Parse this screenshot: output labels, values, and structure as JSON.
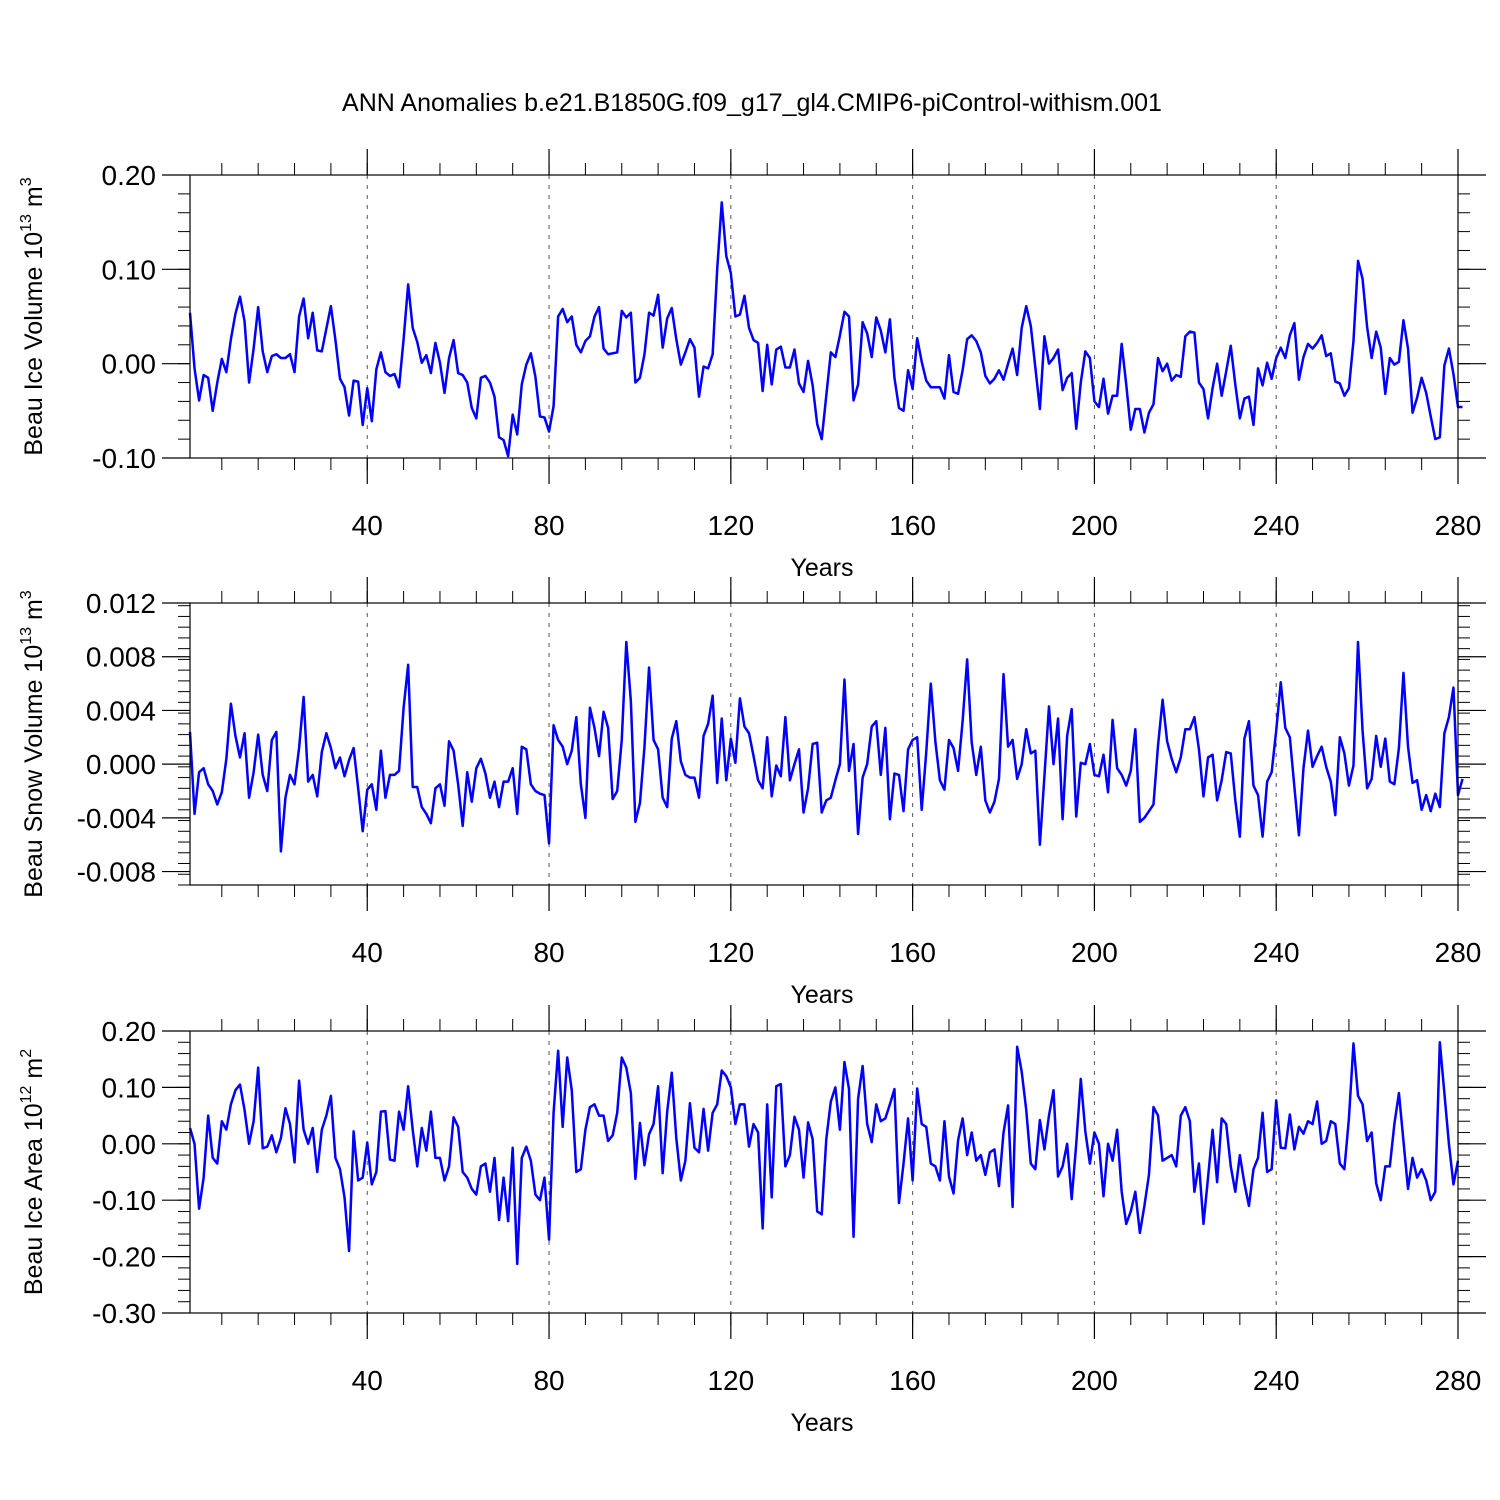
{
  "title": "ANN Anomalies b.e21.B1850G.f09_g17_gl4.CMIP6-piControl-withism.001",
  "chart_data": [
    {
      "type": "line",
      "xlabel": "Years",
      "ylabel": {
        "prefix": "Beau Ice Volume 10",
        "sup": "13",
        "mid": " m",
        "sup2": "3"
      },
      "xlim": [
        1,
        280
      ],
      "ylim": [
        -0.1,
        0.2
      ],
      "xticks": [
        40,
        80,
        120,
        160,
        200,
        240,
        280
      ],
      "xtick_labels": [
        "40",
        "80",
        "120",
        "160",
        "200",
        "240",
        "280"
      ],
      "yticks": [
        -0.1,
        0.0,
        0.1,
        0.2
      ],
      "ytick_labels": [
        "-0.10",
        "0.00",
        "0.10",
        "0.20"
      ],
      "y_minor_step": 0.02,
      "x_minor_step": 8,
      "grid": "vertical dashed at major x ticks",
      "color": "#0000ff",
      "x_start": 1,
      "values": [
        0.054,
        -0.005,
        -0.039,
        -0.012,
        -0.015,
        -0.05,
        -0.02,
        0.005,
        -0.009,
        0.026,
        0.053,
        0.071,
        0.045,
        -0.02,
        0.016,
        0.06,
        0.013,
        -0.009,
        0.008,
        0.01,
        0.006,
        0.006,
        0.01,
        -0.009,
        0.05,
        0.069,
        0.027,
        0.054,
        0.014,
        0.013,
        0.037,
        0.061,
        0.025,
        -0.016,
        -0.025,
        -0.055,
        -0.018,
        -0.019,
        -0.065,
        -0.026,
        -0.061,
        -0.006,
        0.012,
        -0.009,
        -0.013,
        -0.011,
        -0.025,
        0.026,
        0.084,
        0.038,
        0.023,
        0.001,
        0.009,
        -0.01,
        0.022,
        0.001,
        -0.031,
        0.006,
        0.025,
        -0.01,
        -0.012,
        -0.02,
        -0.047,
        -0.058,
        -0.015,
        -0.013,
        -0.02,
        -0.035,
        -0.078,
        -0.081,
        -0.098,
        -0.054,
        -0.075,
        -0.022,
        -0.001,
        0.011,
        -0.014,
        -0.056,
        -0.057,
        -0.072,
        -0.045,
        0.05,
        0.058,
        0.044,
        0.05,
        0.02,
        0.012,
        0.024,
        0.029,
        0.05,
        0.06,
        0.016,
        0.01,
        0.011,
        0.012,
        0.056,
        0.049,
        0.054,
        -0.02,
        -0.015,
        0.01,
        0.054,
        0.051,
        0.073,
        0.017,
        0.048,
        0.059,
        0.026,
        -0.001,
        0.012,
        0.026,
        0.017,
        -0.035,
        -0.003,
        -0.005,
        0.01,
        0.1,
        0.171,
        0.114,
        0.096,
        0.05,
        0.052,
        0.072,
        0.038,
        0.025,
        0.022,
        -0.029,
        0.02,
        -0.022,
        0.015,
        0.018,
        -0.004,
        -0.004,
        0.015,
        -0.021,
        -0.03,
        0.003,
        -0.023,
        -0.064,
        -0.08,
        -0.034,
        0.012,
        0.007,
        0.03,
        0.055,
        0.05,
        -0.039,
        -0.022,
        0.044,
        0.032,
        0.007,
        0.049,
        0.035,
        0.012,
        0.047,
        -0.015,
        -0.047,
        -0.05,
        -0.007,
        -0.027,
        0.027,
        0.002,
        -0.018,
        -0.025,
        -0.025,
        -0.025,
        -0.037,
        0.009,
        -0.03,
        -0.032,
        -0.007,
        0.026,
        0.03,
        0.024,
        0.012,
        -0.013,
        -0.021,
        -0.016,
        -0.007,
        -0.017,
        0.0,
        0.016,
        -0.012,
        0.038,
        0.061,
        0.04,
        -0.004,
        -0.048,
        0.029,
        0.0,
        0.006,
        0.015,
        -0.028,
        -0.015,
        -0.01,
        -0.069,
        -0.02,
        0.013,
        0.006,
        -0.04,
        -0.046,
        -0.016,
        -0.053,
        -0.034,
        -0.034,
        0.021,
        -0.022,
        -0.07,
        -0.048,
        -0.048,
        -0.073,
        -0.052,
        -0.043,
        0.006,
        -0.008,
        0.0,
        -0.018,
        -0.012,
        -0.014,
        0.029,
        0.034,
        0.033,
        -0.02,
        -0.027,
        -0.058,
        -0.026,
        0.0,
        -0.034,
        -0.008,
        0.019,
        -0.022,
        -0.058,
        -0.037,
        -0.035,
        -0.065,
        -0.005,
        -0.023,
        0.001,
        -0.016,
        0.006,
        0.017,
        0.006,
        0.03,
        0.043,
        -0.017,
        0.007,
        0.021,
        0.016,
        0.022,
        0.03,
        0.008,
        0.011,
        -0.019,
        -0.021,
        -0.034,
        -0.026,
        0.024,
        0.109,
        0.09,
        0.039,
        0.006,
        0.034,
        0.017,
        -0.032,
        0.006,
        -0.001,
        0.002,
        0.046,
        0.016,
        -0.052,
        -0.036,
        -0.015,
        -0.031,
        -0.056,
        -0.08,
        -0.078,
        -0.002,
        0.016,
        -0.011,
        -0.046,
        -0.046
      ]
    },
    {
      "type": "line",
      "xlabel": "Years",
      "ylabel": {
        "prefix": "Beau Snow Volume 10",
        "sup": "13",
        "mid": " m",
        "sup2": "3"
      },
      "xlim": [
        1,
        280
      ],
      "ylim": [
        -0.009,
        0.012
      ],
      "xticks": [
        40,
        80,
        120,
        160,
        200,
        240,
        280
      ],
      "xtick_labels": [
        "40",
        "80",
        "120",
        "160",
        "200",
        "240",
        "280"
      ],
      "yticks": [
        -0.008,
        -0.004,
        0.0,
        0.004,
        0.008,
        0.012
      ],
      "ytick_labels": [
        "-0.008",
        "-0.004",
        "0.000",
        "0.004",
        "0.008",
        "0.012"
      ],
      "y_minor_step": 0.0008,
      "x_minor_step": 8,
      "grid": "vertical dashed at major x ticks",
      "color": "#0000ff",
      "x_start": 1,
      "values": [
        0.0024,
        -0.0037,
        -0.0006,
        -0.0003,
        -0.0015,
        -0.002,
        -0.003,
        -0.0021,
        0.0004,
        0.0045,
        0.0021,
        0.0005,
        0.0023,
        -0.0025,
        -0.0006,
        0.0022,
        -0.0008,
        -0.002,
        0.0018,
        0.0024,
        -0.0065,
        -0.0025,
        -0.0008,
        -0.0015,
        0.0012,
        0.005,
        -0.0013,
        -0.0008,
        -0.0024,
        0.0009,
        0.0023,
        0.0012,
        -0.0003,
        0.0005,
        -0.0009,
        0.0003,
        0.0012,
        -0.0018,
        -0.005,
        -0.0019,
        -0.0015,
        -0.0034,
        0.001,
        -0.0025,
        -0.0008,
        -0.0008,
        -0.0005,
        0.0042,
        0.0074,
        -0.0017,
        -0.0017,
        -0.0032,
        -0.0037,
        -0.0044,
        -0.0018,
        -0.0015,
        -0.0031,
        0.0017,
        0.001,
        -0.0015,
        -0.0046,
        -0.0006,
        -0.0028,
        -0.0003,
        0.0004,
        -0.0007,
        -0.0025,
        -0.0013,
        -0.0032,
        -0.0013,
        -0.0013,
        -0.0003,
        -0.0037,
        0.0013,
        0.0011,
        -0.0015,
        -0.002,
        -0.0022,
        -0.0023,
        -0.0059,
        0.0029,
        0.0018,
        0.0013,
        0.0,
        0.001,
        0.0035,
        -0.0015,
        -0.004,
        0.0042,
        0.0027,
        0.0006,
        0.0039,
        0.0027,
        -0.0026,
        -0.002,
        0.0018,
        0.0091,
        0.0047,
        -0.0043,
        -0.0029,
        0.0013,
        0.0072,
        0.0018,
        0.0011,
        -0.0025,
        -0.0032,
        0.0019,
        0.0032,
        0.0002,
        -0.0008,
        -0.001,
        -0.001,
        -0.0025,
        0.0021,
        0.003,
        0.0051,
        -0.0014,
        0.0034,
        -0.0012,
        0.0019,
        0.0001,
        0.0049,
        0.0028,
        0.0023,
        0.0006,
        -0.0012,
        -0.0018,
        0.002,
        -0.0024,
        -0.0001,
        -0.0009,
        0.0035,
        -0.0012,
        0.0,
        0.0011,
        -0.0036,
        -0.0018,
        0.0015,
        0.0016,
        -0.0036,
        -0.0027,
        -0.0025,
        -0.0012,
        0.0,
        0.0063,
        -0.0005,
        0.0015,
        -0.0052,
        -0.001,
        0.0,
        0.0028,
        0.0032,
        -0.0008,
        0.0027,
        -0.0041,
        -0.0007,
        -0.0008,
        -0.0035,
        0.0011,
        0.0018,
        0.002,
        -0.0034,
        0.0009,
        0.006,
        0.0017,
        -0.0012,
        -0.0019,
        0.0018,
        0.0012,
        -0.0005,
        0.0032,
        0.0078,
        0.0016,
        -0.0008,
        0.0013,
        -0.0027,
        -0.0036,
        -0.0028,
        -0.0011,
        0.0067,
        0.0013,
        0.0018,
        -0.0011,
        0.0,
        0.0026,
        0.0008,
        0.001,
        -0.006,
        -0.0009,
        0.0043,
        0.0,
        0.0034,
        -0.0041,
        0.0021,
        0.0041,
        -0.0039,
        0.0001,
        0.0,
        0.0015,
        -0.0008,
        -0.0009,
        0.0007,
        -0.0021,
        0.0033,
        -0.0003,
        -0.0008,
        -0.0016,
        -0.0005,
        0.0026,
        -0.0043,
        -0.004,
        -0.0035,
        -0.003,
        0.0014,
        0.0048,
        0.0017,
        0.0004,
        -0.0006,
        0.0005,
        0.0026,
        0.0026,
        0.0035,
        0.0011,
        -0.0024,
        0.0005,
        0.0007,
        -0.0027,
        -0.0012,
        0.0009,
        0.0008,
        -0.0027,
        -0.0054,
        0.0019,
        0.0032,
        -0.0016,
        -0.0023,
        -0.0054,
        -0.0013,
        -0.0006,
        0.0025,
        0.0061,
        0.0027,
        0.002,
        -0.0017,
        -0.0053,
        -0.0003,
        0.0025,
        -0.0002,
        0.0006,
        0.0013,
        -0.0002,
        -0.0013,
        -0.0038,
        0.002,
        0.0008,
        -0.0016,
        -0.0001,
        0.0091,
        0.0025,
        -0.0018,
        -0.0011,
        0.0021,
        -0.0002,
        0.0019,
        -0.0013,
        -0.0015,
        0.0012,
        0.0068,
        0.0013,
        -0.0014,
        -0.0012,
        -0.0034,
        -0.0023,
        -0.0035,
        -0.0022,
        -0.0032,
        0.0023,
        0.0035,
        0.0057,
        -0.0023,
        -0.0011
      ]
    },
    {
      "type": "line",
      "xlabel": "Years",
      "ylabel": {
        "prefix": "Beau Ice Area 10",
        "sup": "12",
        "mid": " m",
        "sup2": "2"
      },
      "xlim": [
        1,
        280
      ],
      "ylim": [
        -0.3,
        0.2
      ],
      "xticks": [
        40,
        80,
        120,
        160,
        200,
        240,
        280
      ],
      "xtick_labels": [
        "40",
        "80",
        "120",
        "160",
        "200",
        "240",
        "280"
      ],
      "yticks": [
        -0.3,
        -0.2,
        -0.1,
        0.0,
        0.1,
        0.2
      ],
      "ytick_labels": [
        "-0.30",
        "-0.20",
        "-0.10",
        "0.00",
        "0.10",
        "0.20"
      ],
      "y_minor_step": 0.02,
      "x_minor_step": 8,
      "grid": "vertical dashed at major x ticks",
      "color": "#0000ff",
      "x_start": 1,
      "values": [
        0.028,
        0.0,
        -0.115,
        -0.06,
        0.05,
        -0.025,
        -0.035,
        0.04,
        0.025,
        0.07,
        0.095,
        0.105,
        0.06,
        0.0,
        0.04,
        0.135,
        -0.008,
        -0.005,
        0.015,
        -0.015,
        0.01,
        0.063,
        0.035,
        -0.033,
        0.112,
        0.025,
        0.0,
        0.028,
        -0.05,
        0.025,
        0.05,
        0.085,
        -0.025,
        -0.045,
        -0.095,
        -0.19,
        0.022,
        -0.065,
        -0.06,
        0.002,
        -0.072,
        -0.05,
        0.057,
        0.058,
        -0.028,
        -0.03,
        0.057,
        0.025,
        0.102,
        0.025,
        -0.04,
        0.028,
        -0.012,
        0.057,
        -0.025,
        -0.025,
        -0.065,
        -0.04,
        0.047,
        0.03,
        -0.05,
        -0.06,
        -0.08,
        -0.09,
        -0.04,
        -0.035,
        -0.085,
        -0.025,
        -0.135,
        -0.06,
        -0.137,
        -0.007,
        -0.213,
        -0.025,
        -0.005,
        -0.03,
        -0.09,
        -0.1,
        -0.06,
        -0.17,
        0.055,
        0.165,
        0.03,
        0.153,
        0.095,
        -0.05,
        -0.045,
        0.025,
        0.065,
        0.07,
        0.05,
        0.05,
        0.005,
        0.015,
        0.055,
        0.153,
        0.135,
        0.09,
        -0.062,
        0.037,
        -0.038,
        0.017,
        0.035,
        0.102,
        -0.052,
        0.057,
        0.126,
        0.01,
        -0.065,
        -0.03,
        0.072,
        -0.007,
        -0.015,
        0.062,
        -0.012,
        0.055,
        0.07,
        0.13,
        0.12,
        0.1,
        0.035,
        0.07,
        0.07,
        -0.005,
        0.035,
        0.02,
        -0.15,
        0.07,
        -0.095,
        0.102,
        0.106,
        -0.04,
        -0.02,
        0.048,
        0.025,
        -0.06,
        0.038,
        0.008,
        -0.12,
        -0.125,
        0.008,
        0.075,
        0.1,
        0.025,
        0.145,
        0.097,
        -0.165,
        0.08,
        0.138,
        0.035,
        0.003,
        0.07,
        0.04,
        0.045,
        0.07,
        0.097,
        -0.105,
        -0.035,
        0.045,
        -0.065,
        0.098,
        0.035,
        0.03,
        -0.035,
        -0.04,
        -0.065,
        0.04,
        -0.058,
        -0.088,
        0.006,
        0.045,
        -0.02,
        0.02,
        -0.03,
        -0.02,
        -0.055,
        -0.015,
        -0.01,
        -0.075,
        0.02,
        0.068,
        -0.112,
        0.172,
        0.128,
        0.06,
        -0.035,
        -0.045,
        0.042,
        -0.01,
        0.05,
        0.095,
        -0.058,
        -0.04,
        0.0,
        -0.098,
        0.0,
        0.115,
        0.022,
        -0.035,
        0.02,
        0.0,
        -0.093,
        0.0,
        -0.03,
        0.025,
        -0.085,
        -0.142,
        -0.12,
        -0.085,
        -0.158,
        -0.11,
        -0.055,
        0.065,
        0.05,
        -0.03,
        -0.025,
        -0.02,
        -0.04,
        0.05,
        0.065,
        0.04,
        -0.085,
        -0.035,
        -0.142,
        -0.06,
        0.025,
        -0.068,
        0.045,
        0.035,
        -0.04,
        -0.085,
        -0.02,
        -0.07,
        -0.11,
        -0.045,
        -0.025,
        0.055,
        -0.05,
        -0.045,
        0.077,
        -0.007,
        -0.008,
        0.052,
        -0.01,
        0.03,
        0.018,
        0.04,
        0.035,
        0.075,
        0.0,
        0.005,
        0.04,
        0.035,
        -0.035,
        -0.045,
        0.045,
        0.178,
        0.085,
        0.07,
        0.005,
        0.02,
        -0.07,
        -0.1,
        -0.04,
        -0.04,
        0.035,
        0.09,
        0.005,
        -0.08,
        -0.025,
        -0.06,
        -0.045,
        -0.065,
        -0.1,
        -0.085,
        0.18,
        0.09,
        0.0,
        -0.072,
        -0.03
      ]
    }
  ]
}
